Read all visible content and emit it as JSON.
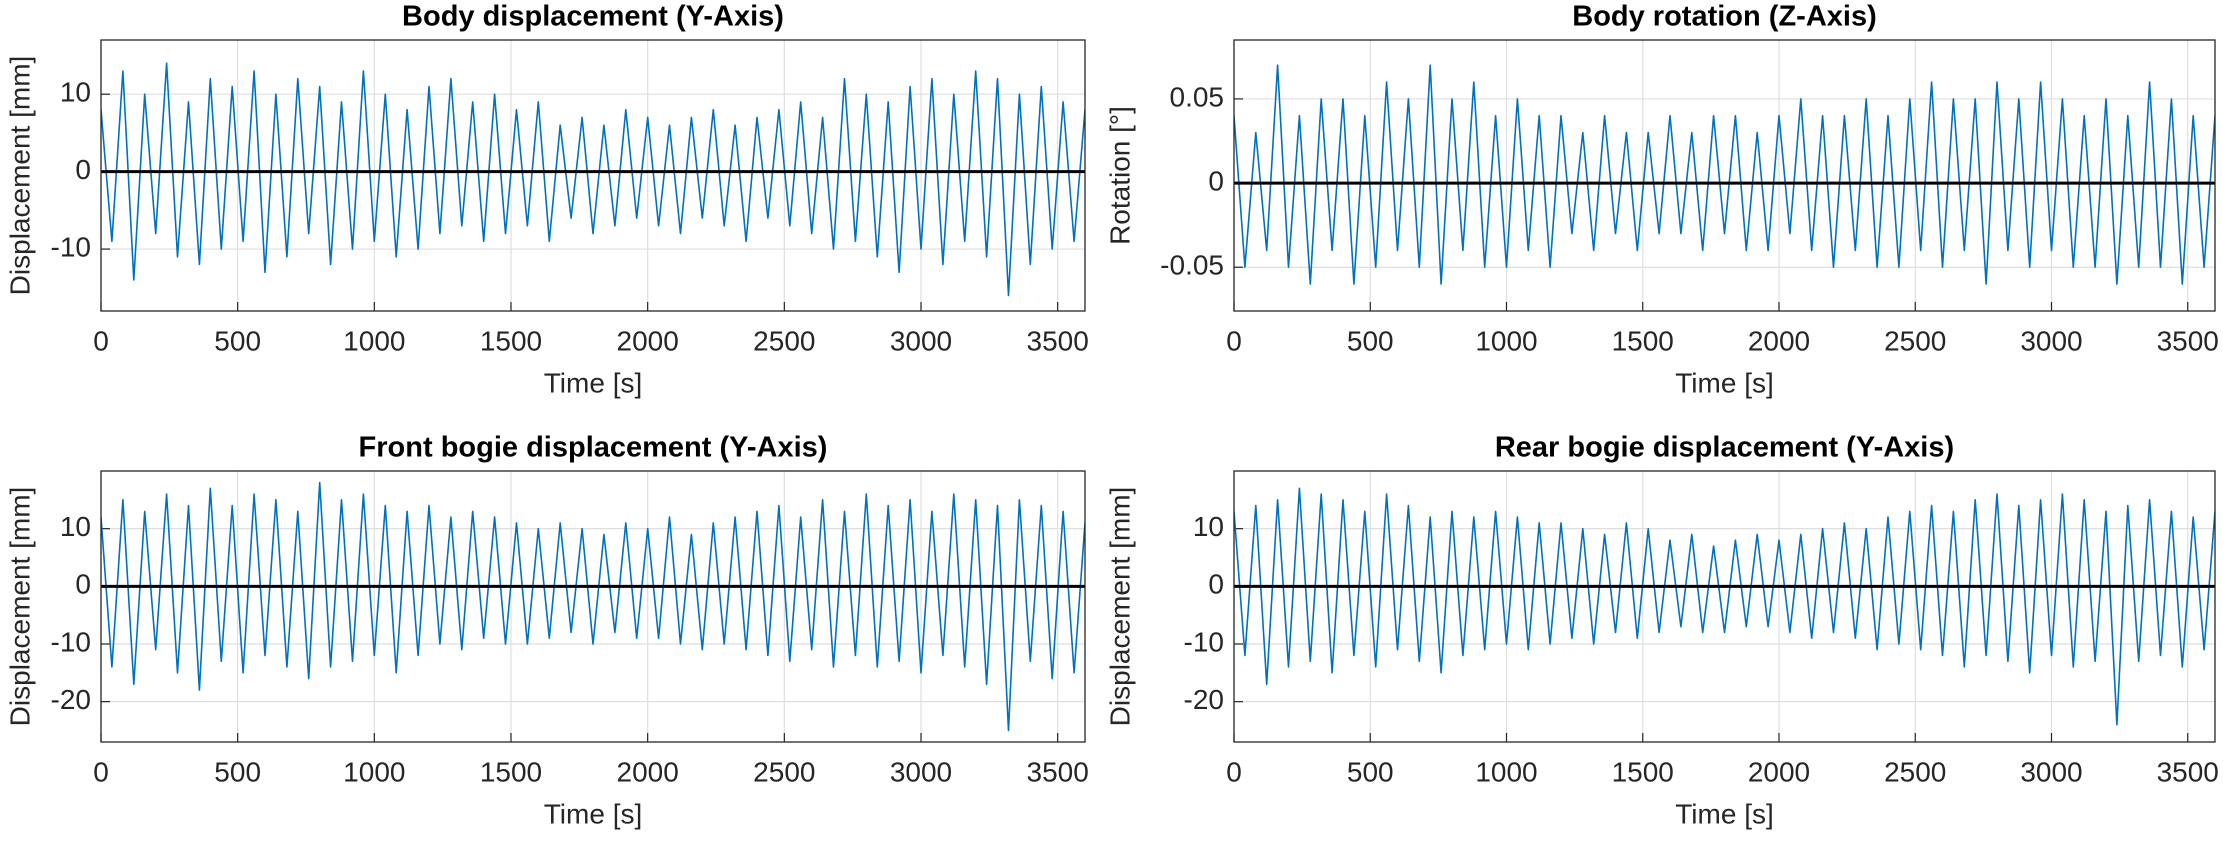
{
  "chart_data": [
    {
      "type": "line",
      "title": "Body displacement (Y-Axis)",
      "x_label": "Time [s]",
      "y_label": "Displacement [mm]",
      "xlim": [
        0,
        3600
      ],
      "xticks": [
        0,
        500,
        1000,
        1500,
        2000,
        2500,
        3000,
        3500
      ],
      "ylim": [
        -18,
        17
      ],
      "yticks": [
        -10,
        0,
        10
      ],
      "grid": true,
      "color": "#0072bd",
      "zero_line": {
        "value": 0,
        "color": "#000000"
      },
      "x": [
        0,
        40,
        80,
        120,
        160,
        200,
        240,
        280,
        320,
        360,
        400,
        440,
        480,
        520,
        560,
        600,
        640,
        680,
        720,
        760,
        800,
        840,
        880,
        920,
        960,
        1000,
        1040,
        1080,
        1120,
        1160,
        1200,
        1240,
        1280,
        1320,
        1360,
        1400,
        1440,
        1480,
        1520,
        1560,
        1600,
        1640,
        1680,
        1720,
        1760,
        1800,
        1840,
        1880,
        1920,
        1960,
        2000,
        2040,
        2080,
        2120,
        2160,
        2200,
        2240,
        2280,
        2320,
        2360,
        2400,
        2440,
        2480,
        2520,
        2560,
        2600,
        2640,
        2680,
        2720,
        2760,
        2800,
        2840,
        2880,
        2920,
        2960,
        3000,
        3040,
        3080,
        3120,
        3160,
        3200,
        3240,
        3280,
        3320,
        3360,
        3400,
        3440,
        3480,
        3520,
        3560,
        3600
      ],
      "values": [
        8,
        -9,
        13,
        -14,
        10,
        -8,
        14,
        -11,
        9,
        -12,
        12,
        -10,
        11,
        -9,
        13,
        -13,
        10,
        -11,
        12,
        -8,
        11,
        -12,
        9,
        -10,
        13,
        -9,
        10,
        -11,
        8,
        -10,
        11,
        -8,
        12,
        -7,
        9,
        -9,
        10,
        -8,
        8,
        -7,
        9,
        -9,
        6,
        -6,
        7,
        -8,
        6,
        -7,
        8,
        -6,
        7,
        -7,
        6,
        -8,
        7,
        -6,
        8,
        -7,
        6,
        -9,
        7,
        -6,
        8,
        -7,
        9,
        -8,
        7,
        -10,
        12,
        -9,
        10,
        -11,
        9,
        -13,
        11,
        -10,
        12,
        -12,
        10,
        -9,
        13,
        -11,
        12,
        -16,
        10,
        -12,
        11,
        -10,
        9,
        -9,
        8
      ]
    },
    {
      "type": "line",
      "title": "Body rotation (Z-Axis)",
      "x_label": "Time [s]",
      "y_label": "Rotation [°]",
      "xlim": [
        0,
        3600
      ],
      "xticks": [
        0,
        500,
        1000,
        1500,
        2000,
        2500,
        3000,
        3500
      ],
      "ylim": [
        -0.076,
        0.085
      ],
      "yticks": [
        -0.05,
        0,
        0.05
      ],
      "grid": true,
      "color": "#0072bd",
      "zero_line": {
        "value": 0,
        "color": "#000000"
      },
      "x": [
        0,
        40,
        80,
        120,
        160,
        200,
        240,
        280,
        320,
        360,
        400,
        440,
        480,
        520,
        560,
        600,
        640,
        680,
        720,
        760,
        800,
        840,
        880,
        920,
        960,
        1000,
        1040,
        1080,
        1120,
        1160,
        1200,
        1240,
        1280,
        1320,
        1360,
        1400,
        1440,
        1480,
        1520,
        1560,
        1600,
        1640,
        1680,
        1720,
        1760,
        1800,
        1840,
        1880,
        1920,
        1960,
        2000,
        2040,
        2080,
        2120,
        2160,
        2200,
        2240,
        2280,
        2320,
        2360,
        2400,
        2440,
        2480,
        2520,
        2560,
        2600,
        2640,
        2680,
        2720,
        2760,
        2800,
        2840,
        2880,
        2920,
        2960,
        3000,
        3040,
        3080,
        3120,
        3160,
        3200,
        3240,
        3280,
        3320,
        3360,
        3400,
        3440,
        3480,
        3520,
        3560,
        3600
      ],
      "values": [
        0.04,
        -0.05,
        0.03,
        -0.04,
        0.07,
        -0.05,
        0.04,
        -0.06,
        0.05,
        -0.04,
        0.05,
        -0.06,
        0.04,
        -0.05,
        0.06,
        -0.04,
        0.05,
        -0.05,
        0.07,
        -0.06,
        0.05,
        -0.04,
        0.06,
        -0.05,
        0.04,
        -0.05,
        0.05,
        -0.04,
        0.04,
        -0.05,
        0.04,
        -0.03,
        0.03,
        -0.04,
        0.04,
        -0.03,
        0.03,
        -0.04,
        0.03,
        -0.03,
        0.04,
        -0.03,
        0.03,
        -0.04,
        0.04,
        -0.03,
        0.04,
        -0.04,
        0.03,
        -0.04,
        0.04,
        -0.03,
        0.05,
        -0.04,
        0.04,
        -0.05,
        0.04,
        -0.04,
        0.05,
        -0.05,
        0.04,
        -0.05,
        0.05,
        -0.04,
        0.06,
        -0.05,
        0.05,
        -0.04,
        0.05,
        -0.06,
        0.06,
        -0.04,
        0.05,
        -0.05,
        0.06,
        -0.04,
        0.05,
        -0.05,
        0.04,
        -0.05,
        0.05,
        -0.06,
        0.04,
        -0.05,
        0.06,
        -0.05,
        0.05,
        -0.06,
        0.04,
        -0.05,
        0.04
      ]
    },
    {
      "type": "line",
      "title": "Front bogie displacement (Y-Axis)",
      "x_label": "Time [s]",
      "y_label": "Displacement [mm]",
      "xlim": [
        0,
        3600
      ],
      "xticks": [
        0,
        500,
        1000,
        1500,
        2000,
        2500,
        3000,
        3500
      ],
      "ylim": [
        -27,
        20
      ],
      "yticks": [
        -20,
        -10,
        0,
        10
      ],
      "grid": true,
      "color": "#0072bd",
      "zero_line": {
        "value": 0,
        "color": "#000000"
      },
      "x": [
        0,
        40,
        80,
        120,
        160,
        200,
        240,
        280,
        320,
        360,
        400,
        440,
        480,
        520,
        560,
        600,
        640,
        680,
        720,
        760,
        800,
        840,
        880,
        920,
        960,
        1000,
        1040,
        1080,
        1120,
        1160,
        1200,
        1240,
        1280,
        1320,
        1360,
        1400,
        1440,
        1480,
        1520,
        1560,
        1600,
        1640,
        1680,
        1720,
        1760,
        1800,
        1840,
        1880,
        1920,
        1960,
        2000,
        2040,
        2080,
        2120,
        2160,
        2200,
        2240,
        2280,
        2320,
        2360,
        2400,
        2440,
        2480,
        2520,
        2560,
        2600,
        2640,
        2680,
        2720,
        2760,
        2800,
        2840,
        2880,
        2920,
        2960,
        3000,
        3040,
        3080,
        3120,
        3160,
        3200,
        3240,
        3280,
        3320,
        3360,
        3400,
        3440,
        3480,
        3520,
        3560,
        3600
      ],
      "values": [
        12,
        -14,
        15,
        -17,
        13,
        -11,
        16,
        -15,
        14,
        -18,
        17,
        -13,
        14,
        -15,
        16,
        -12,
        15,
        -14,
        13,
        -16,
        18,
        -14,
        15,
        -13,
        16,
        -12,
        14,
        -15,
        13,
        -12,
        14,
        -10,
        12,
        -11,
        13,
        -9,
        12,
        -10,
        11,
        -10,
        10,
        -9,
        11,
        -8,
        10,
        -10,
        9,
        -8,
        11,
        -9,
        10,
        -9,
        12,
        -10,
        9,
        -11,
        11,
        -10,
        12,
        -11,
        13,
        -12,
        14,
        -13,
        12,
        -11,
        15,
        -14,
        13,
        -12,
        16,
        -14,
        14,
        -13,
        15,
        -15,
        13,
        -12,
        16,
        -14,
        15,
        -17,
        14,
        -25,
        15,
        -13,
        14,
        -16,
        13,
        -15,
        11
      ]
    },
    {
      "type": "line",
      "title": "Rear bogie displacement (Y-Axis)",
      "x_label": "Time [s]",
      "y_label": "Displacement [mm]",
      "xlim": [
        0,
        3600
      ],
      "xticks": [
        0,
        500,
        1000,
        1500,
        2000,
        2500,
        3000,
        3500
      ],
      "ylim": [
        -27,
        20
      ],
      "yticks": [
        -20,
        -10,
        0,
        10
      ],
      "grid": true,
      "color": "#0072bd",
      "zero_line": {
        "value": 0,
        "color": "#000000"
      },
      "x": [
        0,
        40,
        80,
        120,
        160,
        200,
        240,
        280,
        320,
        360,
        400,
        440,
        480,
        520,
        560,
        600,
        640,
        680,
        720,
        760,
        800,
        840,
        880,
        920,
        960,
        1000,
        1040,
        1080,
        1120,
        1160,
        1200,
        1240,
        1280,
        1320,
        1360,
        1400,
        1440,
        1480,
        1520,
        1560,
        1600,
        1640,
        1680,
        1720,
        1760,
        1800,
        1840,
        1880,
        1920,
        1960,
        2000,
        2040,
        2080,
        2120,
        2160,
        2200,
        2240,
        2280,
        2320,
        2360,
        2400,
        2440,
        2480,
        2520,
        2560,
        2600,
        2640,
        2680,
        2720,
        2760,
        2800,
        2840,
        2880,
        2920,
        2960,
        3000,
        3040,
        3080,
        3120,
        3160,
        3200,
        3240,
        3280,
        3320,
        3360,
        3400,
        3440,
        3480,
        3520,
        3560,
        3600
      ],
      "values": [
        13,
        -12,
        14,
        -17,
        15,
        -14,
        17,
        -13,
        16,
        -15,
        15,
        -12,
        13,
        -14,
        16,
        -11,
        14,
        -13,
        12,
        -15,
        13,
        -12,
        12,
        -11,
        13,
        -10,
        12,
        -11,
        11,
        -10,
        11,
        -9,
        10,
        -10,
        9,
        -8,
        11,
        -9,
        10,
        -8,
        8,
        -7,
        9,
        -8,
        7,
        -8,
        8,
        -7,
        9,
        -7,
        8,
        -8,
        9,
        -9,
        10,
        -8,
        11,
        -9,
        10,
        -11,
        12,
        -10,
        13,
        -11,
        14,
        -12,
        13,
        -14,
        15,
        -12,
        16,
        -13,
        14,
        -15,
        15,
        -12,
        16,
        -14,
        15,
        -13,
        13,
        -24,
        14,
        -13,
        15,
        -12,
        13,
        -14,
        12,
        -11,
        13
      ]
    }
  ]
}
